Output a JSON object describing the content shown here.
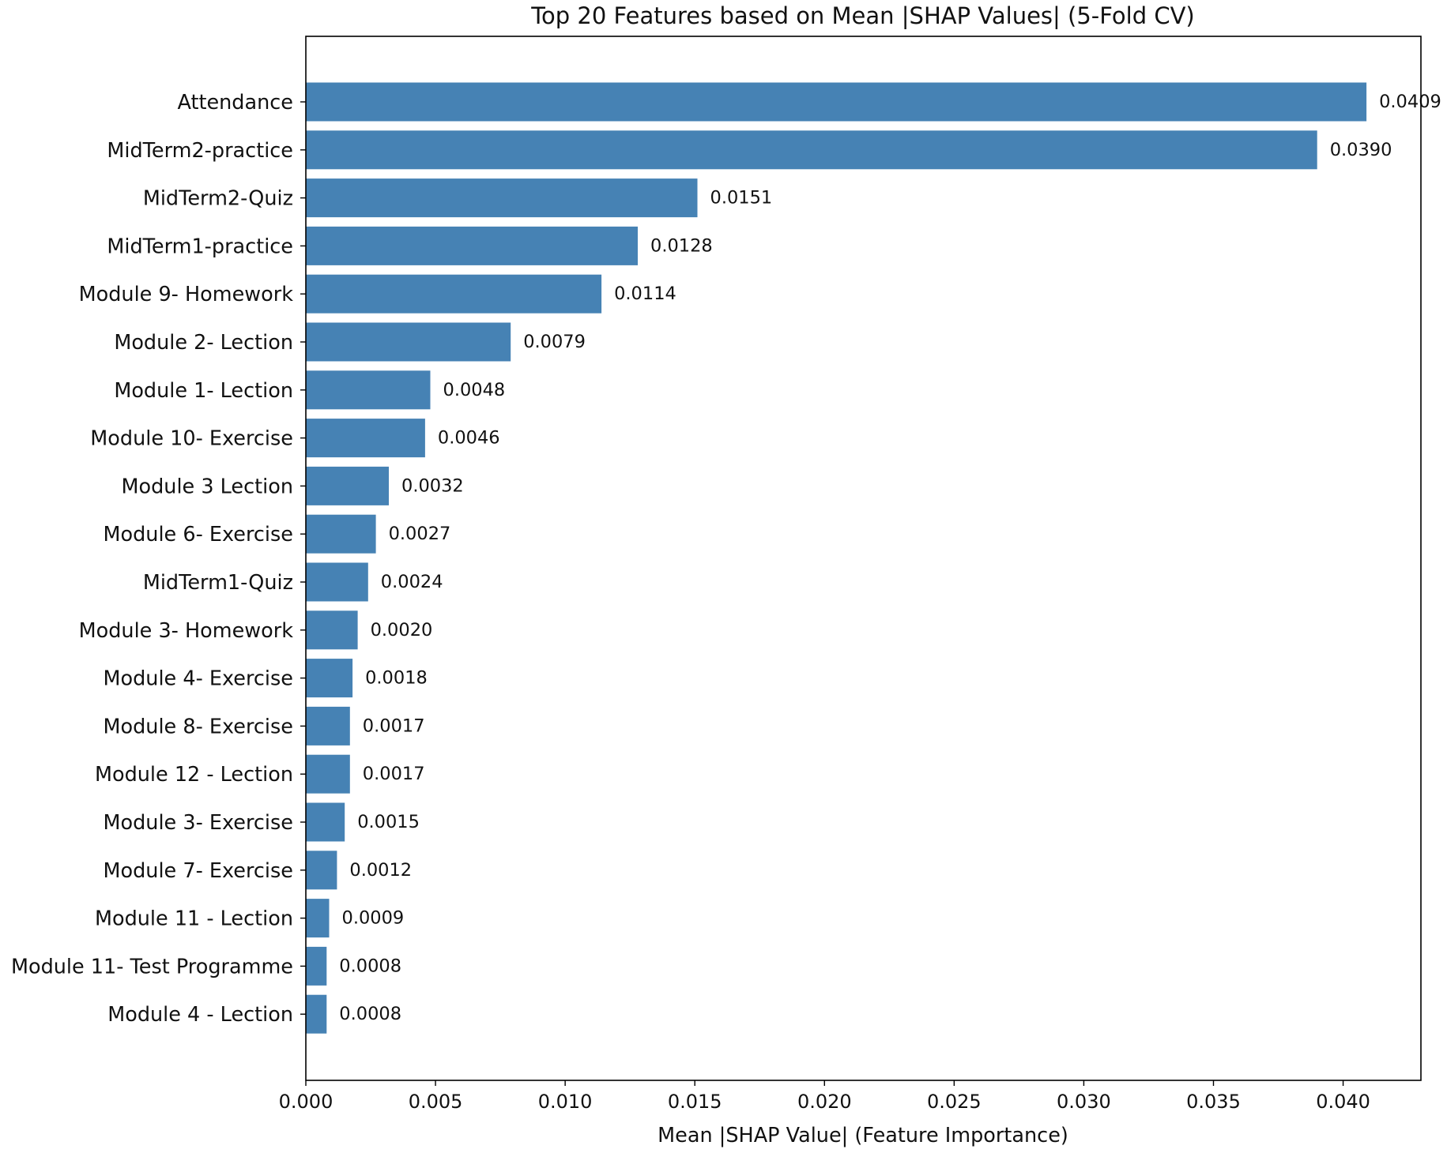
{
  "chart_data": {
    "type": "bar",
    "orientation": "horizontal",
    "title": "Top 20 Features based on Mean |SHAP Values| (5-Fold CV)",
    "xlabel": "Mean |SHAP Value| (Feature Importance)",
    "ylabel": "",
    "xlim": [
      0,
      0.043
    ],
    "xticks": [
      "0.000",
      "0.005",
      "0.010",
      "0.015",
      "0.020",
      "0.025",
      "0.030",
      "0.035",
      "0.040"
    ],
    "grid": false,
    "bar_color": "#4682b4",
    "categories": [
      "Attendance",
      "MidTerm2-practice",
      "MidTerm2-Quiz",
      "MidTerm1-practice",
      "Module 9- Homework",
      "Module 2- Lection",
      "Module 1- Lection",
      "Module 10- Exercise",
      "Module 3 Lection",
      "Module 6- Exercise",
      "MidTerm1-Quiz",
      "Module 3- Homework",
      "Module 4- Exercise",
      "Module 8- Exercise",
      "Module 12 - Lection",
      "Module 3- Exercise",
      "Module 7- Exercise",
      "Module 11 - Lection",
      "Module 11- Test Programme",
      "Module 4 - Lection"
    ],
    "values": [
      0.0409,
      0.039,
      0.0151,
      0.0128,
      0.0114,
      0.0079,
      0.0048,
      0.0046,
      0.0032,
      0.0027,
      0.0024,
      0.002,
      0.0018,
      0.0017,
      0.0017,
      0.0015,
      0.0012,
      0.0009,
      0.0008,
      0.0008
    ],
    "value_labels": [
      "0.0409",
      "0.0390",
      "0.0151",
      "0.0128",
      "0.0114",
      "0.0079",
      "0.0048",
      "0.0046",
      "0.0032",
      "0.0027",
      "0.0024",
      "0.0020",
      "0.0018",
      "0.0017",
      "0.0017",
      "0.0015",
      "0.0012",
      "0.0009",
      "0.0008",
      "0.0008"
    ]
  }
}
